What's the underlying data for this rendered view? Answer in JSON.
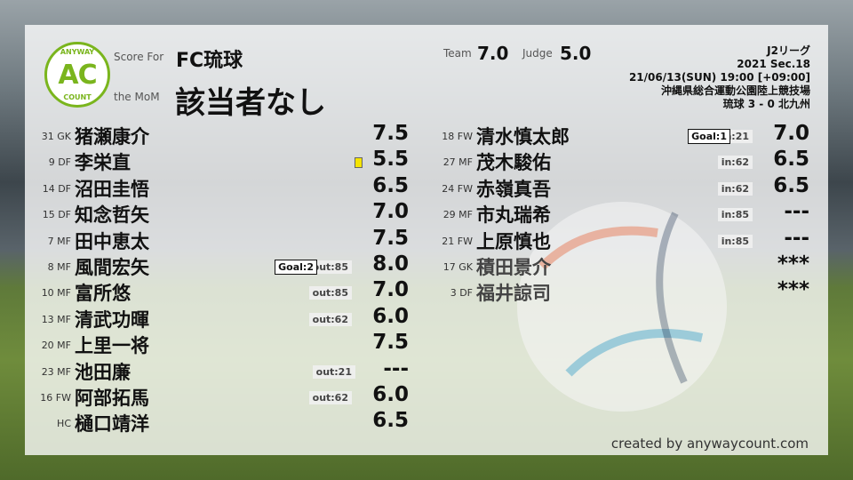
{
  "logo": {
    "top": "ANYWAY",
    "mid": "AC",
    "bottom": "COUNT",
    "color": "#7ab51d"
  },
  "header": {
    "score_for_label": "Score For",
    "club": "FC琉球",
    "mom_label": "the MoM",
    "mom": "該当者なし",
    "team_label": "Team",
    "team_score": "7.0",
    "judge_label": "Judge",
    "judge_score": "5.0"
  },
  "match": {
    "league": "J2リーグ",
    "round": "2021 Sec.18",
    "datetime": "21/06/13(SUN) 19:00 [+09:00]",
    "venue": "沖縄県総合運動公園陸上競技場",
    "result": "琉球 3 - 0 北九州"
  },
  "starters": [
    {
      "pos": "31 GK",
      "name": "猪瀬康介",
      "score": "7.5"
    },
    {
      "pos": "9 DF",
      "name": "李栄直",
      "score": "5.5",
      "yellow_card": true
    },
    {
      "pos": "14 DF",
      "name": "沼田圭悟",
      "score": "6.5"
    },
    {
      "pos": "15 DF",
      "name": "知念哲矢",
      "score": "7.0"
    },
    {
      "pos": "7 MF",
      "name": "田中恵太",
      "score": "7.5"
    },
    {
      "pos": "8 MF",
      "name": "風間宏矢",
      "score": "8.0",
      "goal": "Goal:2",
      "sub": "out:85"
    },
    {
      "pos": "10 MF",
      "name": "富所悠",
      "score": "7.0",
      "sub": "out:85"
    },
    {
      "pos": "13 MF",
      "name": "清武功暉",
      "score": "6.0",
      "sub": "out:62"
    },
    {
      "pos": "20 MF",
      "name": "上里一将",
      "score": "7.5"
    },
    {
      "pos": "23 MF",
      "name": "池田廉",
      "score": "---",
      "sub": "out:21"
    },
    {
      "pos": "16 FW",
      "name": "阿部拓馬",
      "score": "6.0",
      "sub": "out:62"
    },
    {
      "pos": "HC",
      "name": "樋口靖洋",
      "score": "6.5"
    }
  ],
  "subs": [
    {
      "pos": "18 FW",
      "name": "清水慎太郎",
      "score": "7.0",
      "goal": "Goal:1",
      "sub": "in:21"
    },
    {
      "pos": "27 MF",
      "name": "茂木駿佑",
      "score": "6.5",
      "sub": "in:62"
    },
    {
      "pos": "24 FW",
      "name": "赤嶺真吾",
      "score": "6.5",
      "sub": "in:62"
    },
    {
      "pos": "29 MF",
      "name": "市丸瑞希",
      "score": "---",
      "sub": "in:85"
    },
    {
      "pos": "21 FW",
      "name": "上原慎也",
      "score": "---",
      "sub": "in:85"
    },
    {
      "pos": "17 GK",
      "name": "積田景介",
      "score": "***",
      "unused": true
    },
    {
      "pos": "3 DF",
      "name": "福井諒司",
      "score": "***",
      "unused": true
    }
  ],
  "credit": "created by anywaycount.com"
}
